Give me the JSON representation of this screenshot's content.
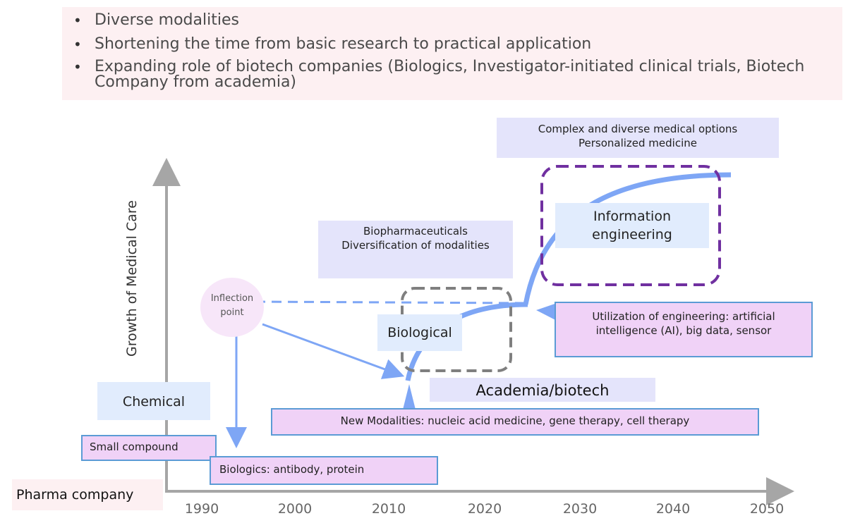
{
  "bullets": [
    "Diverse modalities",
    "Shortening the time from basic research to practical application",
    "Expanding role of biotech companies (Biologics, Investigator-initiated clinical trials, Biotech Company from academia)"
  ],
  "axis": {
    "y_label": "Growth of Medical Care",
    "x_ticks": [
      "1990",
      "2000",
      "2010",
      "2020",
      "2030",
      "2040",
      "2050"
    ],
    "origin_label": "Pharma company"
  },
  "labels": {
    "chemical": "Chemical",
    "biological": "Biological",
    "information": "Information engineering",
    "academia": "Academia/biotech",
    "inflection": "Inflection point",
    "biopharma": "Biopharmaceuticals Diversification of modalities",
    "complex": "Complex and diverse medical options",
    "personalized": "Personalized medicine"
  },
  "callouts": {
    "small_compound": "Small compound",
    "biologics": "Biologics: antibody, protein",
    "new_modalities": "New Modalities: nucleic acid medicine, gene therapy, cell therapy",
    "engineering": "Utilization of engineering: artificial intelligence (AI), big data, sensor"
  },
  "colors": {
    "curve": "#7ea6f5",
    "axis": "#a6a6a6",
    "purple_dash": "#7030a0",
    "gray_dash": "#7f7f7f",
    "callout_border": "#5b9bd5"
  }
}
